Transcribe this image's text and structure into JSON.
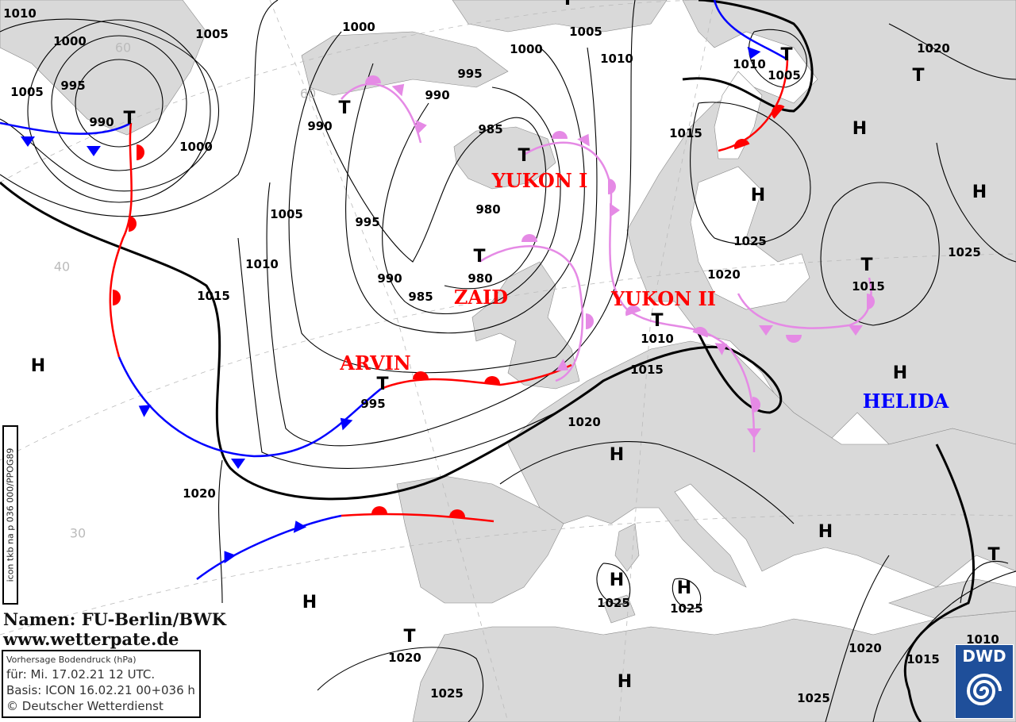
{
  "credit": {
    "names": "Namen: FU-Berlin/BWK",
    "website": "www.wetterpate.de"
  },
  "info_box": {
    "title": "Vorhersage Bodendruck (hPa)",
    "valid": "für:  Mi. 17.02.21  12 UTC.",
    "basis": "Basis: ICON  16.02.21 00+036 h",
    "copyright": "© Deutscher Wetterdienst"
  },
  "product_code": "icon tkb na p 036 000/PPOG89",
  "logo": {
    "text": "DWD",
    "color": "#1f4f9a"
  },
  "colors": {
    "land": "#d9d9d9",
    "sea": "#ffffff",
    "cold_front": "#0000ff",
    "warm_front": "#ff0000",
    "occlusion": "#e58ae5",
    "storm_name_low": "#ff0000",
    "storm_name_high": "#0000ff"
  },
  "storm_names": [
    {
      "name": "YUKON I",
      "type": "low"
    },
    {
      "name": "ZAID",
      "type": "low"
    },
    {
      "name": "ARVIN",
      "type": "low"
    },
    {
      "name": "YUKON II",
      "type": "low"
    },
    {
      "name": "HELIDA",
      "type": "high"
    }
  ],
  "isobar_labels": [
    "1010",
    "1000",
    "1005",
    "1000",
    "1005",
    "1000",
    "1010",
    "1020",
    "1010",
    "1005",
    "995",
    "990",
    "1005",
    "995",
    "990",
    "1000",
    "990",
    "985",
    "980",
    "1015",
    "1005",
    "995",
    "1010",
    "990",
    "980",
    "985",
    "1015",
    "1025",
    "1025",
    "1020",
    "1015",
    "1010",
    "1015",
    "995",
    "1020",
    "1020",
    "1025",
    "1025",
    "1020",
    "1025",
    "1020",
    "1015",
    "1010",
    "1025"
  ],
  "high_markers": [
    "H",
    "H",
    "H",
    "H",
    "H",
    "H",
    "H",
    "H",
    "H",
    "H",
    "H"
  ],
  "low_markers": [
    "T",
    "T",
    "T",
    "T",
    "T",
    "T",
    "T",
    "T",
    "T",
    "T",
    "T",
    "T"
  ],
  "latitude_labels": [
    "60",
    "40",
    "30",
    "60"
  ]
}
